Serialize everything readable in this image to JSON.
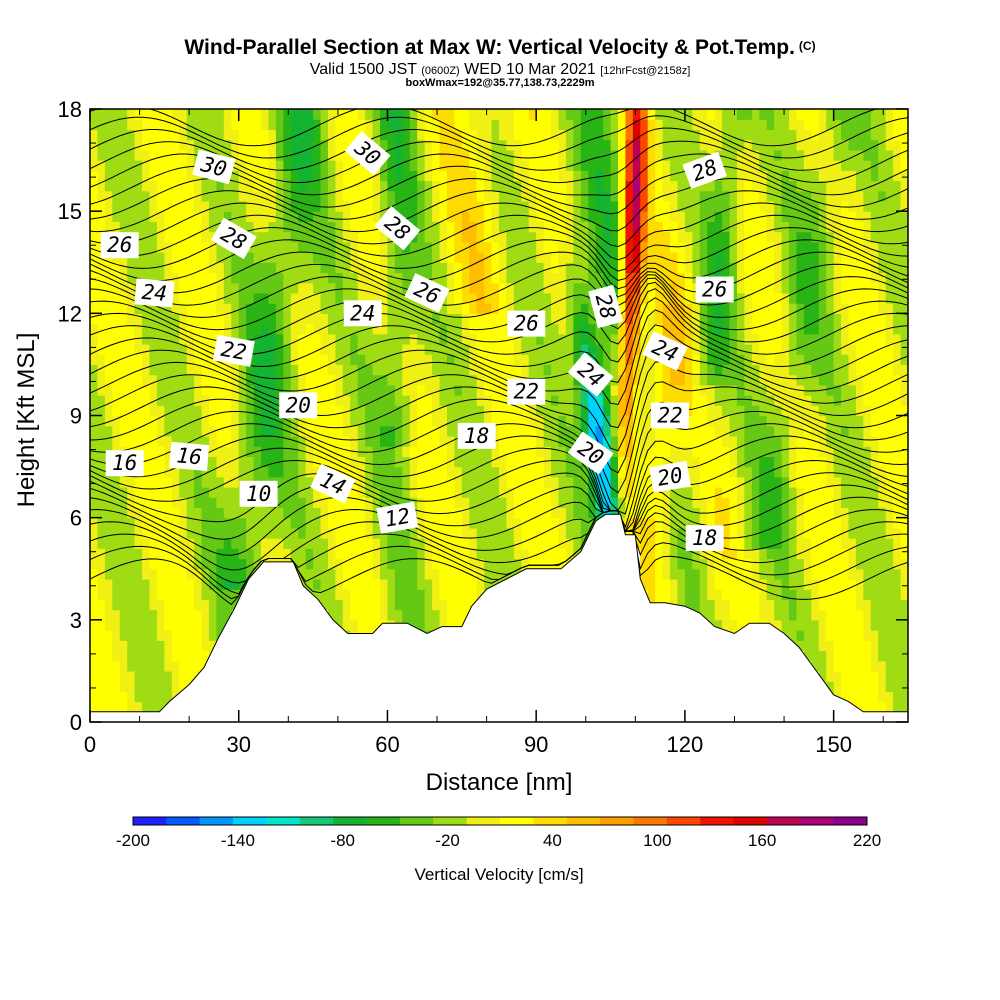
{
  "header": {
    "title": "Wind-Parallel Section at Max W: Vertical Velocity & Pot.Temp.",
    "title_mark": "(C)",
    "subtitle_a": "Valid 1500 JST",
    "subtitle_b": "(0600Z)",
    "subtitle_c": "WED 10 Mar 2021",
    "subtitle_d": "[12hrFcst@2158z]",
    "box_line": "boxWmax=192@35.77,138.73,2229m"
  },
  "chart_data": {
    "type": "heatmap",
    "xlabel": "Distance [nm]",
    "ylabel": "Height [Kft MSL]",
    "xlim": [
      0,
      165
    ],
    "ylim": [
      0,
      18
    ],
    "x_ticks": [
      "0",
      "30",
      "60",
      "90",
      "120",
      "150"
    ],
    "y_ticks": [
      "0",
      "3",
      "6",
      "9",
      "12",
      "15",
      "18"
    ],
    "colorbar": {
      "title": "Vertical Velocity [cm/s]",
      "labels": [
        "-200",
        "-140",
        "-80",
        "-20",
        "40",
        "100",
        "160",
        "220"
      ],
      "colors": [
        "#1e1eff",
        "#005aff",
        "#0096ff",
        "#00d2ff",
        "#00e6c8",
        "#14c878",
        "#14b432",
        "#28b414",
        "#64c814",
        "#a0dc14",
        "#f0f014",
        "#ffff00",
        "#ffdc00",
        "#ffbe00",
        "#ffa000",
        "#ff7800",
        "#ff4600",
        "#f01400",
        "#dc0000",
        "#be0050",
        "#aa0078",
        "#8c008c"
      ]
    },
    "terrain": [
      [
        0,
        0.3
      ],
      [
        14,
        0.3
      ],
      [
        16,
        0.6
      ],
      [
        20,
        1.1
      ],
      [
        23,
        1.6
      ],
      [
        26,
        2.5
      ],
      [
        29,
        3.3
      ],
      [
        32,
        4.2
      ],
      [
        35,
        4.7
      ],
      [
        41,
        4.7
      ],
      [
        43,
        4.0
      ],
      [
        46,
        3.6
      ],
      [
        49,
        3.0
      ],
      [
        52,
        2.6
      ],
      [
        57,
        2.6
      ],
      [
        59,
        2.9
      ],
      [
        64,
        2.9
      ],
      [
        68,
        2.6
      ],
      [
        71,
        2.8
      ],
      [
        75,
        2.8
      ],
      [
        77,
        3.4
      ],
      [
        80,
        3.9
      ],
      [
        84,
        4.2
      ],
      [
        88,
        4.5
      ],
      [
        95,
        4.5
      ],
      [
        99,
        5.0
      ],
      [
        102,
        5.9
      ],
      [
        104,
        6.1
      ],
      [
        107,
        6.1
      ],
      [
        108,
        5.5
      ],
      [
        110,
        5.5
      ],
      [
        111,
        4.2
      ],
      [
        113,
        3.5
      ],
      [
        116,
        3.5
      ],
      [
        120,
        3.4
      ],
      [
        123,
        3.2
      ],
      [
        126,
        2.8
      ],
      [
        130,
        2.6
      ],
      [
        133,
        2.9
      ],
      [
        137,
        2.9
      ],
      [
        140,
        2.6
      ],
      [
        143,
        2.2
      ],
      [
        146,
        1.6
      ],
      [
        148,
        1.2
      ],
      [
        150,
        0.8
      ],
      [
        153,
        0.6
      ],
      [
        156,
        0.3
      ],
      [
        165,
        0.3
      ]
    ],
    "theta_labels": [
      {
        "text": "30",
        "x": 25,
        "y": 16.3,
        "rot": 15
      },
      {
        "text": "30",
        "x": 56,
        "y": 16.7,
        "rot": 40
      },
      {
        "text": "28",
        "x": 29,
        "y": 14.2,
        "rot": 30
      },
      {
        "text": "28",
        "x": 62,
        "y": 14.5,
        "rot": 40
      },
      {
        "text": "28",
        "x": 124,
        "y": 16.2,
        "rot": -20
      },
      {
        "text": "28",
        "x": 104,
        "y": 12.2,
        "rot": 75
      },
      {
        "text": "26",
        "x": 6,
        "y": 14.0,
        "rot": 0
      },
      {
        "text": "26",
        "x": 68,
        "y": 12.6,
        "rot": 25
      },
      {
        "text": "26",
        "x": 88,
        "y": 11.7,
        "rot": 0
      },
      {
        "text": "26",
        "x": 126,
        "y": 12.7,
        "rot": 0
      },
      {
        "text": "24",
        "x": 13,
        "y": 12.6,
        "rot": 5
      },
      {
        "text": "24",
        "x": 55,
        "y": 12.0,
        "rot": 0
      },
      {
        "text": "24",
        "x": 101,
        "y": 10.2,
        "rot": 40
      },
      {
        "text": "24",
        "x": 116,
        "y": 10.9,
        "rot": 25
      },
      {
        "text": "22",
        "x": 29,
        "y": 10.9,
        "rot": 10
      },
      {
        "text": "22",
        "x": 88,
        "y": 9.7,
        "rot": 0
      },
      {
        "text": "22",
        "x": 117,
        "y": 9.0,
        "rot": 0
      },
      {
        "text": "20",
        "x": 42,
        "y": 9.3,
        "rot": 0
      },
      {
        "text": "20",
        "x": 101,
        "y": 7.9,
        "rot": 35
      },
      {
        "text": "20",
        "x": 117,
        "y": 7.2,
        "rot": -10
      },
      {
        "text": "18",
        "x": 78,
        "y": 8.4,
        "rot": 0
      },
      {
        "text": "18",
        "x": 124,
        "y": 5.4,
        "rot": 0
      },
      {
        "text": "16",
        "x": 7,
        "y": 7.6,
        "rot": 0
      },
      {
        "text": "16",
        "x": 20,
        "y": 7.8,
        "rot": 5
      },
      {
        "text": "14",
        "x": 49,
        "y": 7.0,
        "rot": 25
      },
      {
        "text": "12",
        "x": 62,
        "y": 6.0,
        "rot": -10
      },
      {
        "text": "10",
        "x": 34,
        "y": 6.7,
        "rot": 0
      }
    ]
  }
}
